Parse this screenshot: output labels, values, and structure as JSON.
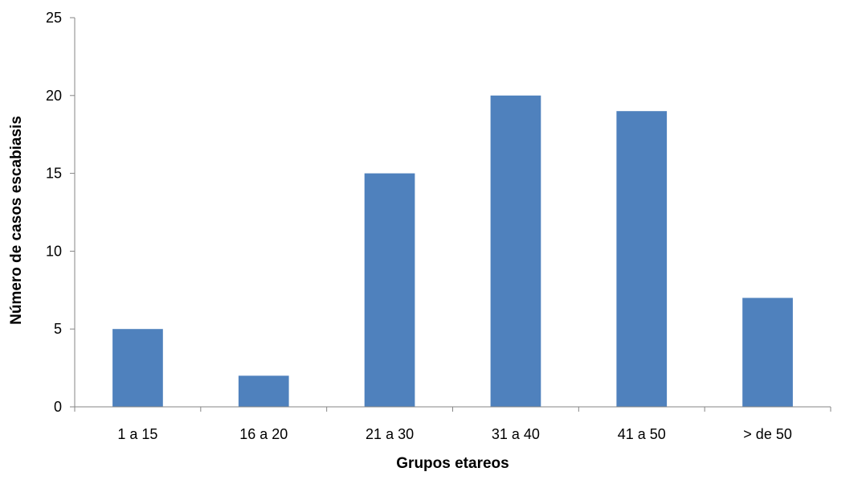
{
  "chart_data": {
    "type": "bar",
    "title": "",
    "xlabel": "Grupos etareos",
    "ylabel": "Número de casos escabiasis",
    "categories": [
      "1 a 15",
      "16 a 20",
      "21 a 30",
      "31 a 40",
      "41 a 50",
      "> de 50"
    ],
    "values": [
      5,
      2,
      15,
      20,
      19,
      7
    ],
    "ylim": [
      0,
      25
    ],
    "yticks": [
      0,
      5,
      10,
      15,
      20,
      25
    ],
    "bar_color": "#4F81BD",
    "axis_color": "#868686",
    "grid": false,
    "legend": "none"
  }
}
